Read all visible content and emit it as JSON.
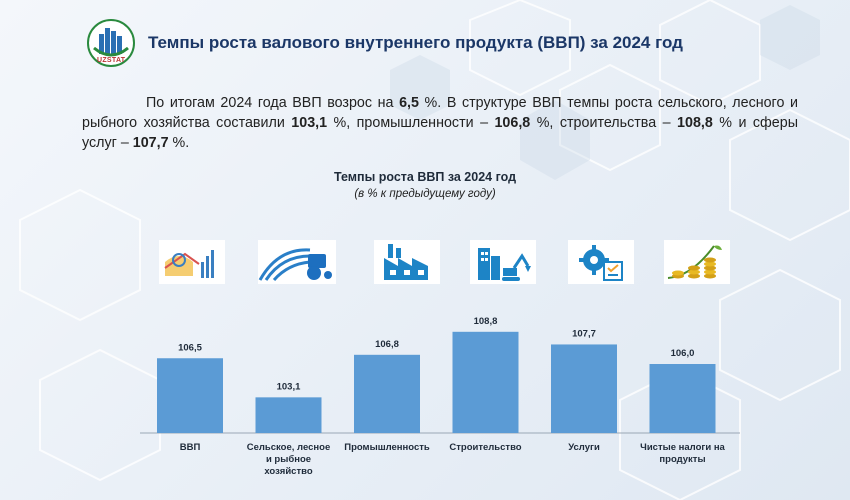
{
  "header": {
    "logo_text": "UZSTAT",
    "title": "Темпы роста валового внутреннего продукта (ВВП) за 2024 год"
  },
  "paragraph": {
    "p1": "По итогам 2024 года ВВП возрос на ",
    "v1": "6,5",
    "p2": " %. В структуре ВВП темпы роста сельского, лесного и рыбного хозяйства составили ",
    "v2": "103,1",
    "p3": " %, промышленности – ",
    "v3": "106,8",
    "p4": " %, строительства – ",
    "v4": "108,8",
    "p5": " % и сферы услуг – ",
    "v5": "107,7",
    "p6": " %."
  },
  "icons": [
    "gdp-chart-icon",
    "tractor-field-icon",
    "factory-icon",
    "construction-excavator-icon",
    "services-gear-icon",
    "coins-growth-icon"
  ],
  "colors": {
    "bar": "#5b9bd5",
    "title": "#1b3767"
  },
  "chart_data": {
    "type": "bar",
    "title": "Темпы роста ВВП за 2024 год",
    "subtitle": "(в % к предыдущему году)",
    "categories": [
      [
        "ВВП"
      ],
      [
        "Сельское, лесное",
        "и рыбное",
        "хозяйство"
      ],
      [
        "Промышленность"
      ],
      [
        "Строительство"
      ],
      [
        "Услуги"
      ],
      [
        "Чистые налоги на",
        "продукты"
      ]
    ],
    "values": [
      106.5,
      103.1,
      106.8,
      108.8,
      107.7,
      106.0
    ],
    "value_labels": [
      "106,5",
      "103,1",
      "106,8",
      "108,8",
      "107,7",
      "106,0"
    ],
    "ylim": [
      100,
      110
    ],
    "grid": false
  }
}
